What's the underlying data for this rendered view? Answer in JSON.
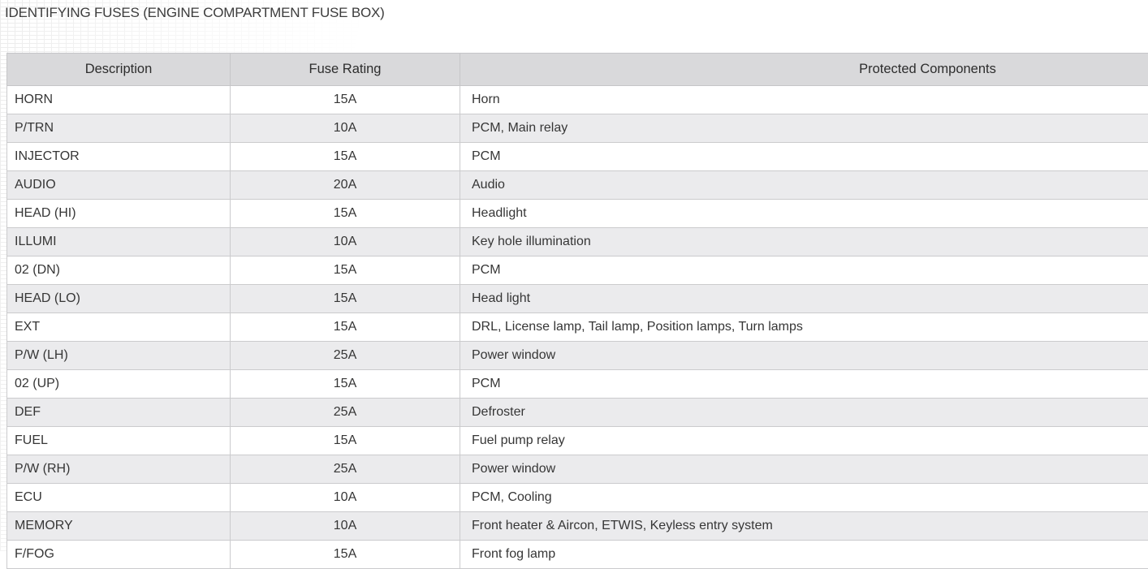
{
  "page": {
    "title": "IDENTIFYING FUSES (ENGINE COMPARTMENT FUSE BOX)"
  },
  "colors": {
    "header_background": "#d9d9db",
    "stripe_background": "#ebebed",
    "border": "#cbcbcd",
    "text": "#363636"
  },
  "table": {
    "columns": [
      "Description",
      "Fuse Rating",
      "Protected Components"
    ],
    "rows": [
      {
        "description": "HORN",
        "rating": "15A",
        "components": "Horn"
      },
      {
        "description": "P/TRN",
        "rating": "10A",
        "components": "PCM, Main relay"
      },
      {
        "description": "INJECTOR",
        "rating": "15A",
        "components": "PCM"
      },
      {
        "description": "AUDIO",
        "rating": "20A",
        "components": "Audio"
      },
      {
        "description": "HEAD (HI)",
        "rating": "15A",
        "components": "Headlight"
      },
      {
        "description": "ILLUMI",
        "rating": "10A",
        "components": "Key hole illumination"
      },
      {
        "description": "02 (DN)",
        "rating": "15A",
        "components": "PCM"
      },
      {
        "description": "HEAD (LO)",
        "rating": "15A",
        "components": "Head light"
      },
      {
        "description": "EXT",
        "rating": "15A",
        "components": "DRL, License lamp, Tail lamp, Position lamps, Turn lamps"
      },
      {
        "description": "P/W (LH)",
        "rating": "25A",
        "components": "Power window"
      },
      {
        "description": "02 (UP)",
        "rating": "15A",
        "components": "PCM"
      },
      {
        "description": "DEF",
        "rating": "25A",
        "components": "Defroster"
      },
      {
        "description": "FUEL",
        "rating": "15A",
        "components": "Fuel pump relay"
      },
      {
        "description": "P/W (RH)",
        "rating": "25A",
        "components": "Power window"
      },
      {
        "description": "ECU",
        "rating": "10A",
        "components": "PCM, Cooling"
      },
      {
        "description": "MEMORY",
        "rating": "10A",
        "components": "Front heater & Aircon, ETWIS, Keyless entry system"
      },
      {
        "description": "F/FOG",
        "rating": "15A",
        "components": "Front fog lamp"
      }
    ]
  }
}
